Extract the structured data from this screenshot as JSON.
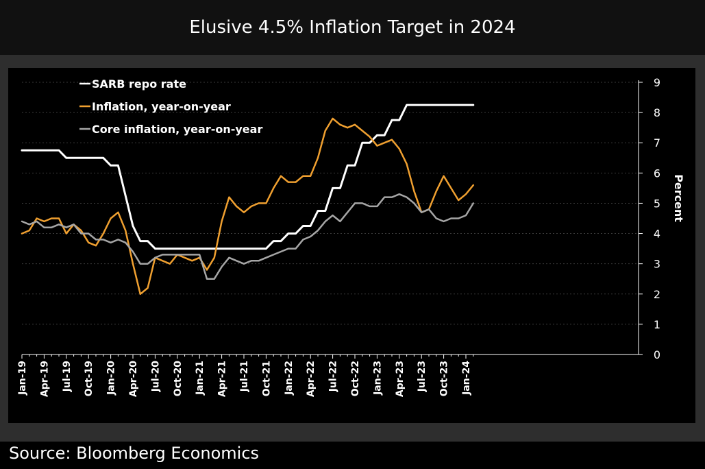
{
  "header": {
    "title": "Elusive 4.5% Inflation Target in 2024"
  },
  "footer": {
    "source": "Source: Bloomberg Economics"
  },
  "colors": {
    "background": "#000000",
    "frame": "#2e2e2e",
    "repo": "#ffffff",
    "inflation": "#f0a030",
    "core": "#a6a6a6",
    "grid": "#3a3a3a",
    "text": "#ffffff"
  },
  "chart_data": {
    "type": "line",
    "title": "Elusive 4.5% Inflation Target in 2024",
    "ylabel": "Percent",
    "ylim": [
      0,
      9
    ],
    "yticks": [
      0,
      1,
      2,
      3,
      4,
      5,
      6,
      7,
      8,
      9
    ],
    "y_axis_side": "right",
    "grid": true,
    "legend_position": "top-left",
    "x": [
      "Jan-19",
      "Feb-19",
      "Mar-19",
      "Apr-19",
      "May-19",
      "Jun-19",
      "Jul-19",
      "Aug-19",
      "Sep-19",
      "Oct-19",
      "Nov-19",
      "Dec-19",
      "Jan-20",
      "Feb-20",
      "Mar-20",
      "Apr-20",
      "May-20",
      "Jun-20",
      "Jul-20",
      "Aug-20",
      "Sep-20",
      "Oct-20",
      "Nov-20",
      "Dec-20",
      "Jan-21",
      "Feb-21",
      "Mar-21",
      "Apr-21",
      "May-21",
      "Jun-21",
      "Jul-21",
      "Aug-21",
      "Sep-21",
      "Oct-21",
      "Nov-21",
      "Dec-21",
      "Jan-22",
      "Feb-22",
      "Mar-22",
      "Apr-22",
      "May-22",
      "Jun-22",
      "Jul-22",
      "Aug-22",
      "Sep-22",
      "Oct-22",
      "Nov-22",
      "Dec-22",
      "Jan-23",
      "Feb-23",
      "Mar-23",
      "Apr-23",
      "May-23",
      "Jun-23",
      "Jul-23",
      "Aug-23",
      "Sep-23",
      "Oct-23",
      "Nov-23",
      "Dec-23",
      "Jan-24",
      "Feb-24"
    ],
    "x_tick_labels": [
      "Jan-19",
      "Apr-19",
      "Jul-19",
      "Oct-19",
      "Jan-20",
      "Apr-20",
      "Jul-20",
      "Oct-20",
      "Jan-21",
      "Apr-21",
      "Jul-21",
      "Oct-21",
      "Jan-22",
      "Apr-22",
      "Jul-22",
      "Oct-22",
      "Jan-23",
      "Apr-23",
      "Jul-23",
      "Oct-23",
      "Jan-24"
    ],
    "series": [
      {
        "name": "SARB repo rate",
        "color": "#ffffff",
        "values": [
          6.75,
          6.75,
          6.75,
          6.75,
          6.75,
          6.75,
          6.5,
          6.5,
          6.5,
          6.5,
          6.5,
          6.5,
          6.25,
          6.25,
          5.25,
          4.25,
          3.75,
          3.75,
          3.5,
          3.5,
          3.5,
          3.5,
          3.5,
          3.5,
          3.5,
          3.5,
          3.5,
          3.5,
          3.5,
          3.5,
          3.5,
          3.5,
          3.5,
          3.5,
          3.75,
          3.75,
          4.0,
          4.0,
          4.25,
          4.25,
          4.75,
          4.75,
          5.5,
          5.5,
          6.25,
          6.25,
          7.0,
          7.0,
          7.25,
          7.25,
          7.75,
          7.75,
          8.25,
          8.25,
          8.25,
          8.25,
          8.25,
          8.25,
          8.25,
          8.25,
          8.25,
          8.25
        ]
      },
      {
        "name": "Inflation, year-on-year",
        "color": "#f0a030",
        "values": [
          4.0,
          4.1,
          4.5,
          4.4,
          4.5,
          4.5,
          4.0,
          4.3,
          4.1,
          3.7,
          3.6,
          4.0,
          4.5,
          4.7,
          4.1,
          3.0,
          2.0,
          2.2,
          3.2,
          3.1,
          3.0,
          3.3,
          3.2,
          3.1,
          3.2,
          2.8,
          3.2,
          4.4,
          5.2,
          4.9,
          4.7,
          4.9,
          5.0,
          5.0,
          5.5,
          5.9,
          5.7,
          5.7,
          5.9,
          5.9,
          6.5,
          7.4,
          7.8,
          7.6,
          7.5,
          7.6,
          7.4,
          7.2,
          6.9,
          7.0,
          7.1,
          6.8,
          6.3,
          5.4,
          4.7,
          4.8,
          5.4,
          5.9,
          5.5,
          5.1,
          5.3,
          5.6
        ]
      },
      {
        "name": "Core inflation, year-on-year",
        "color": "#a6a6a6",
        "values": [
          4.4,
          4.3,
          4.4,
          4.2,
          4.2,
          4.3,
          4.2,
          4.3,
          4.0,
          4.0,
          3.8,
          3.8,
          3.7,
          3.8,
          3.7,
          3.4,
          3.0,
          3.0,
          3.2,
          3.3,
          3.3,
          3.3,
          3.3,
          3.3,
          3.3,
          2.5,
          2.5,
          2.9,
          3.2,
          3.1,
          3.0,
          3.1,
          3.1,
          3.2,
          3.3,
          3.4,
          3.5,
          3.5,
          3.8,
          3.9,
          4.1,
          4.4,
          4.6,
          4.4,
          4.7,
          5.0,
          5.0,
          4.9,
          4.9,
          5.2,
          5.2,
          5.3,
          5.2,
          5.0,
          4.7,
          4.8,
          4.5,
          4.4,
          4.5,
          4.5,
          4.6,
          5.0
        ]
      }
    ]
  }
}
